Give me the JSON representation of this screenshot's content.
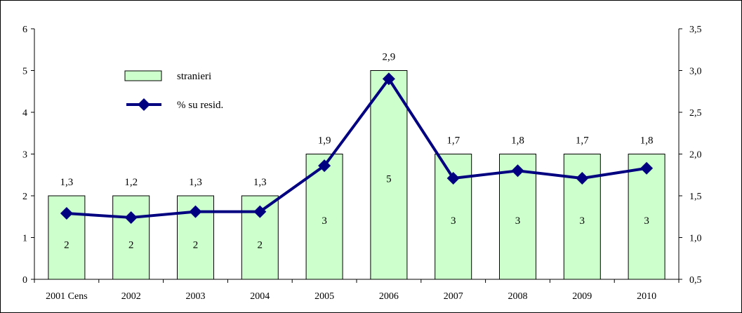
{
  "chart_data": {
    "type": "bar",
    "categories": [
      "2001 Cens",
      "2002",
      "2003",
      "2004",
      "2005",
      "2006",
      "2007",
      "2008",
      "2009",
      "2010"
    ],
    "series": [
      {
        "name": "stranieri",
        "type": "bar",
        "axis": "left",
        "values": [
          2,
          2,
          2,
          2,
          3,
          5,
          3,
          3,
          3,
          3
        ],
        "labels": [
          "2",
          "2",
          "2",
          "2",
          "3",
          "5",
          "3",
          "3",
          "3",
          "3"
        ],
        "color": "#ccffcc"
      },
      {
        "name": "% su resid.",
        "type": "line",
        "axis": "right",
        "values": [
          1.29,
          1.24,
          1.31,
          1.31,
          1.86,
          2.9,
          1.71,
          1.8,
          1.71,
          1.83
        ],
        "labels": [
          "1,3",
          "1,2",
          "1,3",
          "1,3",
          "1,9",
          "2,9",
          "1,7",
          "1,8",
          "1,7",
          "1,8"
        ],
        "color": "#000080"
      }
    ],
    "y_left": {
      "lim": [
        0,
        6
      ],
      "ticks": [
        0,
        1,
        2,
        3,
        4,
        5,
        6
      ],
      "tick_labels": [
        "0",
        "1",
        "2",
        "3",
        "4",
        "5",
        "6"
      ]
    },
    "y_right": {
      "lim": [
        0.5,
        3.5
      ],
      "ticks": [
        0.5,
        1.0,
        1.5,
        2.0,
        2.5,
        3.0,
        3.5
      ],
      "tick_labels": [
        "0,5",
        "1,0",
        "1,5",
        "2,0",
        "2,5",
        "3,0",
        "3,5"
      ]
    },
    "grid": false,
    "legend": "top-left"
  }
}
